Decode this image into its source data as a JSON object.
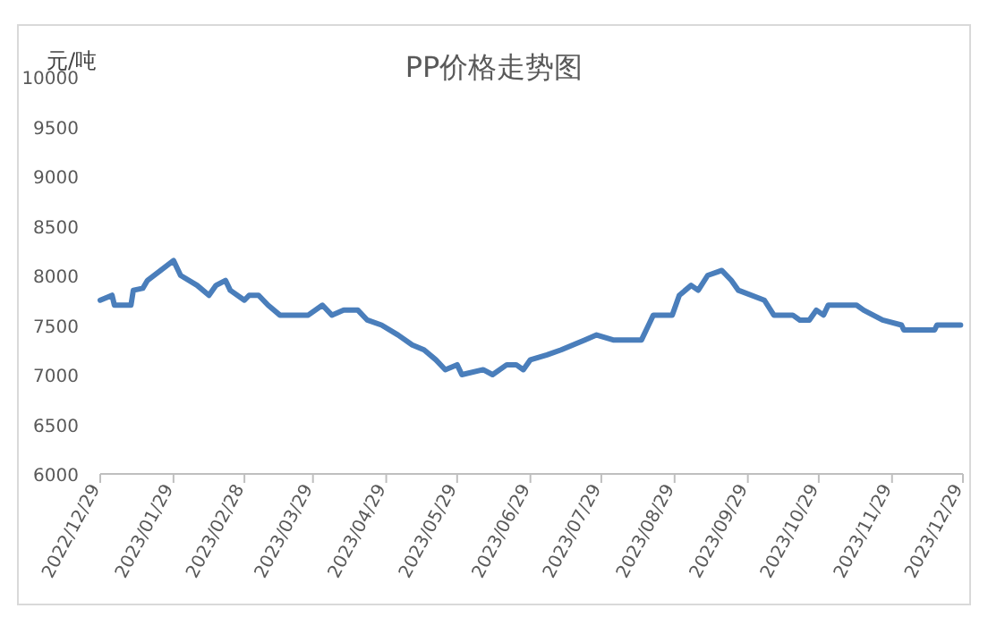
{
  "chart_data": {
    "type": "line",
    "title": "PP价格走势图",
    "ylabel": "元/吨",
    "x": [
      "2022-12-29",
      "2023-01-03",
      "2023-01-04",
      "2023-01-11",
      "2023-01-12",
      "2023-01-16",
      "2023-01-18",
      "2023-01-29",
      "2023-02-01",
      "2023-02-08",
      "2023-02-13",
      "2023-02-16",
      "2023-02-20",
      "2023-02-22",
      "2023-02-28",
      "2023-03-02",
      "2023-03-06",
      "2023-03-10",
      "2023-03-15",
      "2023-03-27",
      "2023-04-02",
      "2023-04-06",
      "2023-04-11",
      "2023-04-17",
      "2023-04-21",
      "2023-04-27",
      "2023-05-04",
      "2023-05-10",
      "2023-05-15",
      "2023-05-20",
      "2023-05-24",
      "2023-05-29",
      "2023-05-31",
      "2023-06-09",
      "2023-06-13",
      "2023-06-19",
      "2023-06-23",
      "2023-06-26",
      "2023-06-29",
      "2023-07-06",
      "2023-07-12",
      "2023-07-17",
      "2023-07-22",
      "2023-07-27",
      "2023-08-03",
      "2023-08-15",
      "2023-08-18",
      "2023-08-20",
      "2023-08-28",
      "2023-08-31",
      "2023-09-05",
      "2023-09-08",
      "2023-09-12",
      "2023-09-18",
      "2023-09-22",
      "2023-09-25",
      "2023-10-06",
      "2023-10-10",
      "2023-10-18",
      "2023-10-21",
      "2023-10-25",
      "2023-10-28",
      "2023-10-31",
      "2023-11-02",
      "2023-11-14",
      "2023-11-17",
      "2023-11-25",
      "2023-12-03",
      "2023-12-04",
      "2023-12-17",
      "2023-12-18",
      "2023-12-28"
    ],
    "series": [
      {
        "color": "#4a7ebb",
        "values": [
          7750,
          7800,
          7700,
          7700,
          7850,
          7870,
          7950,
          8150,
          8000,
          7900,
          7800,
          7900,
          7950,
          7850,
          7750,
          7800,
          7800,
          7700,
          7600,
          7600,
          7700,
          7600,
          7650,
          7650,
          7550,
          7500,
          7400,
          7300,
          7250,
          7150,
          7050,
          7100,
          7000,
          7050,
          7000,
          7100,
          7100,
          7050,
          7150,
          7200,
          7250,
          7300,
          7350,
          7400,
          7350,
          7350,
          7500,
          7600,
          7600,
          7800,
          7900,
          7850,
          8000,
          8050,
          7950,
          7850,
          7750,
          7600,
          7600,
          7550,
          7550,
          7650,
          7600,
          7700,
          7700,
          7650,
          7550,
          7500,
          7450,
          7450,
          7500,
          7500
        ]
      }
    ],
    "xlim": [
      "2022-12-29",
      "2023-12-29"
    ],
    "xticks": [
      {
        "value": "2022-12-29",
        "label": "2022/12/29"
      },
      {
        "value": "2023-01-29",
        "label": "2023/01/29"
      },
      {
        "value": "2023-02-28",
        "label": "2023/02/28"
      },
      {
        "value": "2023-03-29",
        "label": "2023/03/29"
      },
      {
        "value": "2023-04-29",
        "label": "2023/04/29"
      },
      {
        "value": "2023-05-29",
        "label": "2023/05/29"
      },
      {
        "value": "2023-06-29",
        "label": "2023/06/29"
      },
      {
        "value": "2023-07-29",
        "label": "2023/07/29"
      },
      {
        "value": "2023-08-29",
        "label": "2023/08/29"
      },
      {
        "value": "2023-09-29",
        "label": "2023/09/29"
      },
      {
        "value": "2023-10-29",
        "label": "2023/10/29"
      },
      {
        "value": "2023-11-29",
        "label": "2023/11/29"
      },
      {
        "value": "2023-12-29",
        "label": "2023/12/29"
      }
    ],
    "ylim": [
      6000,
      10000
    ],
    "yticks": [
      6000,
      6500,
      7000,
      7500,
      8000,
      8500,
      9000,
      9500,
      10000
    ],
    "grid": false,
    "marker": "none",
    "line_style": "solid"
  }
}
